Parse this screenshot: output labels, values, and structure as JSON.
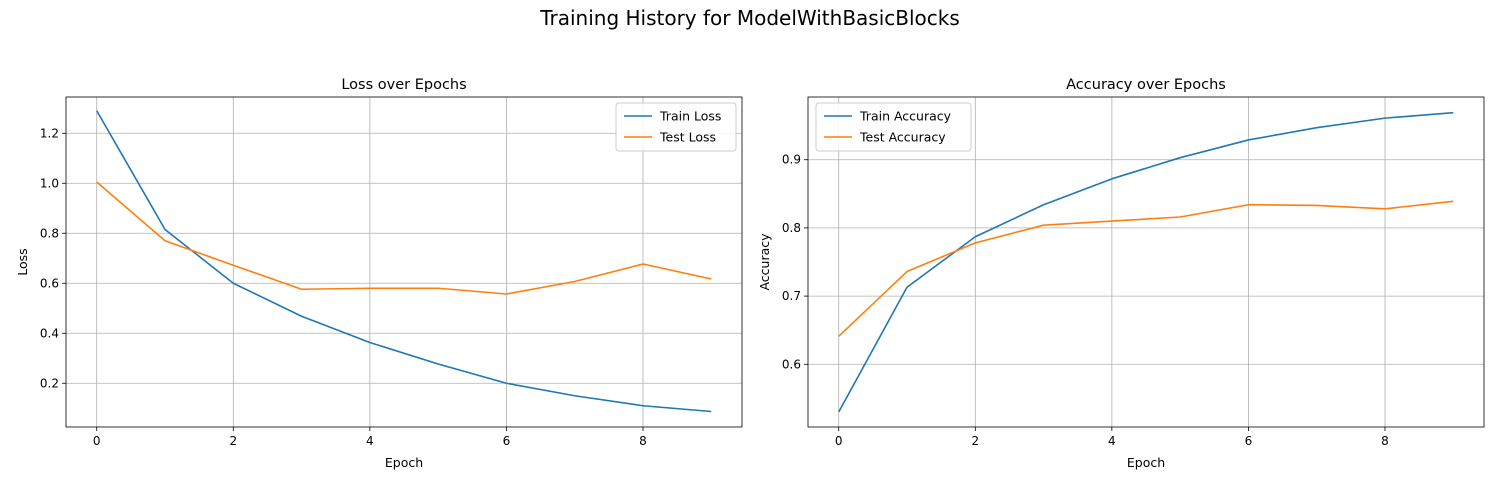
{
  "suptitle": "Training History for ModelWithBasicBlocks",
  "colors": {
    "train": "#1f77b4",
    "test": "#ff7f0e",
    "grid": "#b0b0b0",
    "axis": "#000000"
  },
  "chart_data": [
    {
      "type": "line",
      "title": "Loss over Epochs",
      "xlabel": "Epoch",
      "ylabel": "Loss",
      "x": [
        0,
        1,
        2,
        3,
        4,
        5,
        6,
        7,
        8,
        9
      ],
      "xlim": [
        -0.45,
        9.45
      ],
      "ylim": [
        0.025,
        1.345
      ],
      "xticks": [
        0,
        2,
        4,
        6,
        8
      ],
      "yticks": [
        0.2,
        0.4,
        0.6,
        0.8,
        1.0,
        1.2
      ],
      "yticklabels": [
        "0.2",
        "0.4",
        "0.6",
        "0.8",
        "1.0",
        "1.2"
      ],
      "grid": true,
      "legend_position": "top-right",
      "series": [
        {
          "name": "Train Loss",
          "color": "#1f77b4",
          "values": [
            1.29,
            0.815,
            0.6,
            0.468,
            0.363,
            0.277,
            0.2,
            0.15,
            0.11,
            0.087
          ]
        },
        {
          "name": "Test Loss",
          "color": "#ff7f0e",
          "values": [
            1.005,
            0.77,
            0.672,
            0.576,
            0.58,
            0.58,
            0.557,
            0.607,
            0.677,
            0.617
          ]
        }
      ]
    },
    {
      "type": "line",
      "title": "Accuracy over Epochs",
      "xlabel": "Epoch",
      "ylabel": "Accuracy",
      "x": [
        0,
        1,
        2,
        3,
        4,
        5,
        6,
        7,
        8,
        9
      ],
      "xlim": [
        -0.45,
        9.45
      ],
      "ylim": [
        0.508,
        0.992
      ],
      "xticks": [
        0,
        2,
        4,
        6,
        8
      ],
      "yticks": [
        0.6,
        0.7,
        0.8,
        0.9
      ],
      "yticklabels": [
        "0.6",
        "0.7",
        "0.8",
        "0.9"
      ],
      "grid": true,
      "legend_position": "top-left",
      "series": [
        {
          "name": "Train Accuracy",
          "color": "#1f77b4",
          "values": [
            0.53,
            0.713,
            0.787,
            0.834,
            0.872,
            0.903,
            0.929,
            0.947,
            0.961,
            0.969
          ]
        },
        {
          "name": "Test Accuracy",
          "color": "#ff7f0e",
          "values": [
            0.641,
            0.736,
            0.778,
            0.804,
            0.81,
            0.816,
            0.834,
            0.833,
            0.828,
            0.839
          ]
        }
      ]
    }
  ]
}
